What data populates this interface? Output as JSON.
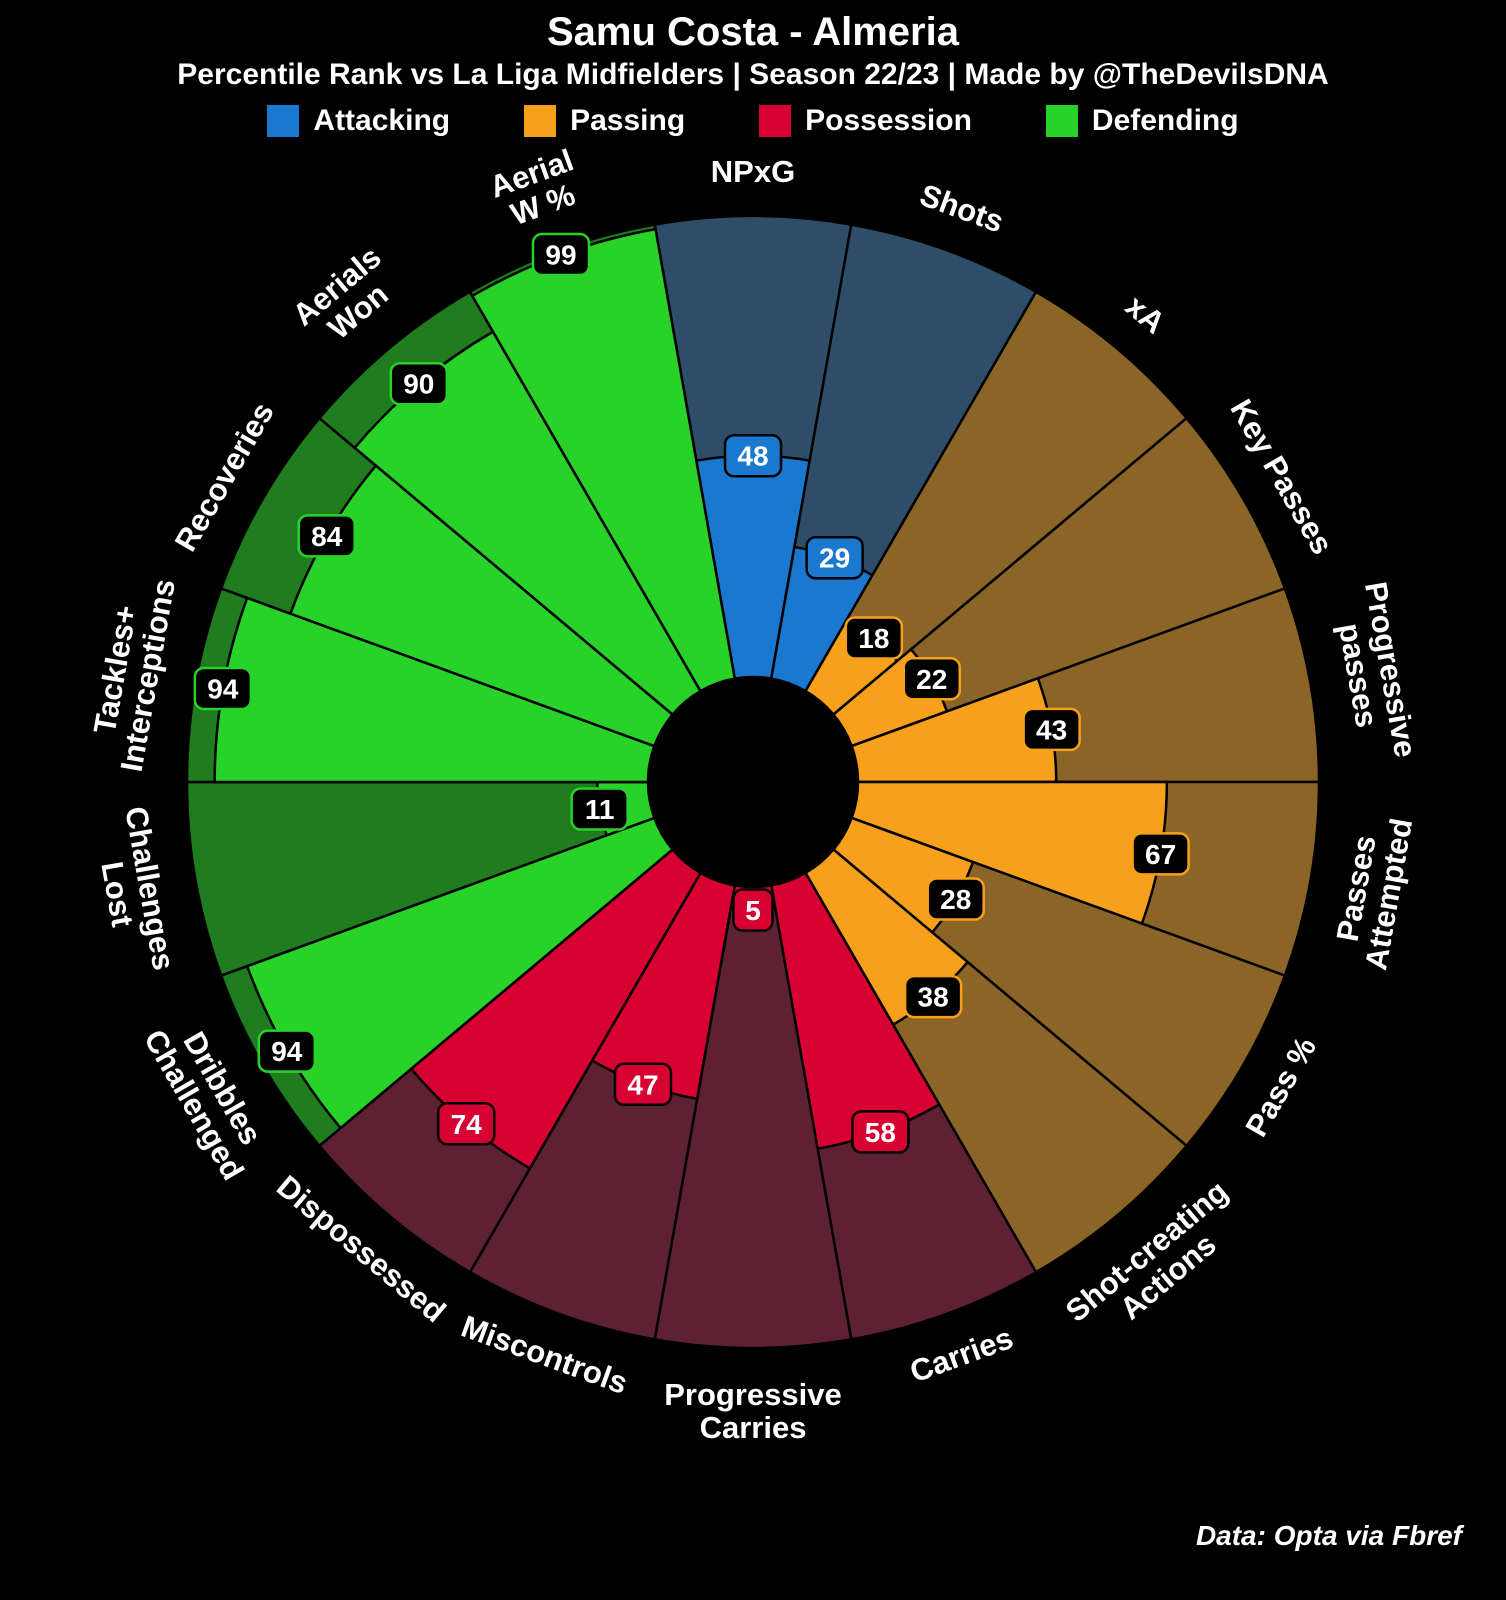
{
  "header": {
    "title": "Samu Costa - Almeria",
    "subtitle": "Percentile Rank vs La Liga Midfielders | Season 22/23 | Made by @TheDevilsDNA"
  },
  "legend": {
    "items": [
      {
        "label": "Attacking",
        "color": "#1a78cf"
      },
      {
        "label": "Passing",
        "color": "#f7a01c"
      },
      {
        "label": "Possession",
        "color": "#d70232"
      },
      {
        "label": "Defending",
        "color": "#28d228"
      }
    ]
  },
  "footer": {
    "credit": "Data: Opta via Fbref"
  },
  "chart_data": {
    "type": "pizza",
    "title": "Samu Costa - Almeria",
    "subtitle": "Percentile Rank vs La Liga Midfielders | Season 22/23 | Made by @TheDevilsDNA",
    "scale": [
      0,
      100
    ],
    "legend_position": "top",
    "categories": {
      "attacking": {
        "fill": "#1a78cf",
        "bg": "#2e4d68",
        "box_fill": "#1a78cf",
        "box_stroke": "#000000",
        "box_text": "#ffffff"
      },
      "passing": {
        "fill": "#f7a01c",
        "bg": "#8a6527",
        "box_fill": "#000000",
        "box_stroke": "#f7a01c",
        "box_text": "#ffffff"
      },
      "possession": {
        "fill": "#d70232",
        "bg": "#5e2033",
        "box_fill": "#d70232",
        "box_stroke": "#000000",
        "box_text": "#ffffff"
      },
      "defending": {
        "fill": "#28d228",
        "bg": "#1f7c1f",
        "box_fill": "#000000",
        "box_stroke": "#28d228",
        "box_text": "#ffffff"
      }
    },
    "params": [
      {
        "label": "NPxG",
        "value": 48,
        "category": "attacking"
      },
      {
        "label": "Shots",
        "value": 29,
        "category": "attacking"
      },
      {
        "label": "xA",
        "value": 18,
        "category": "passing"
      },
      {
        "label": "Key Passes",
        "value": 22,
        "category": "passing"
      },
      {
        "label": "Progressive\npasses",
        "value": 43,
        "category": "passing"
      },
      {
        "label": "Passes\nAttempted",
        "value": 67,
        "category": "passing"
      },
      {
        "label": "Pass %",
        "value": 28,
        "category": "passing"
      },
      {
        "label": "Shot-creating\nActions",
        "value": 38,
        "category": "passing"
      },
      {
        "label": "Carries",
        "value": 58,
        "category": "possession"
      },
      {
        "label": "Progressive\nCarries",
        "value": 5,
        "category": "possession"
      },
      {
        "label": "Miscontrols",
        "value": 47,
        "category": "possession"
      },
      {
        "label": "Dispossessed",
        "value": 74,
        "category": "possession"
      },
      {
        "label": "Dribbles\nChallenged",
        "value": 94,
        "category": "defending"
      },
      {
        "label": "Challenges\nLost",
        "value": 11,
        "category": "defending"
      },
      {
        "label": "Tackles+\nInterceptions",
        "value": 94,
        "category": "defending"
      },
      {
        "label": "Recoveries",
        "value": 84,
        "category": "defending"
      },
      {
        "label": "Aerials\nWon",
        "value": 90,
        "category": "defending"
      },
      {
        "label": "Aerial\nW %",
        "value": 99,
        "category": "defending"
      }
    ]
  }
}
